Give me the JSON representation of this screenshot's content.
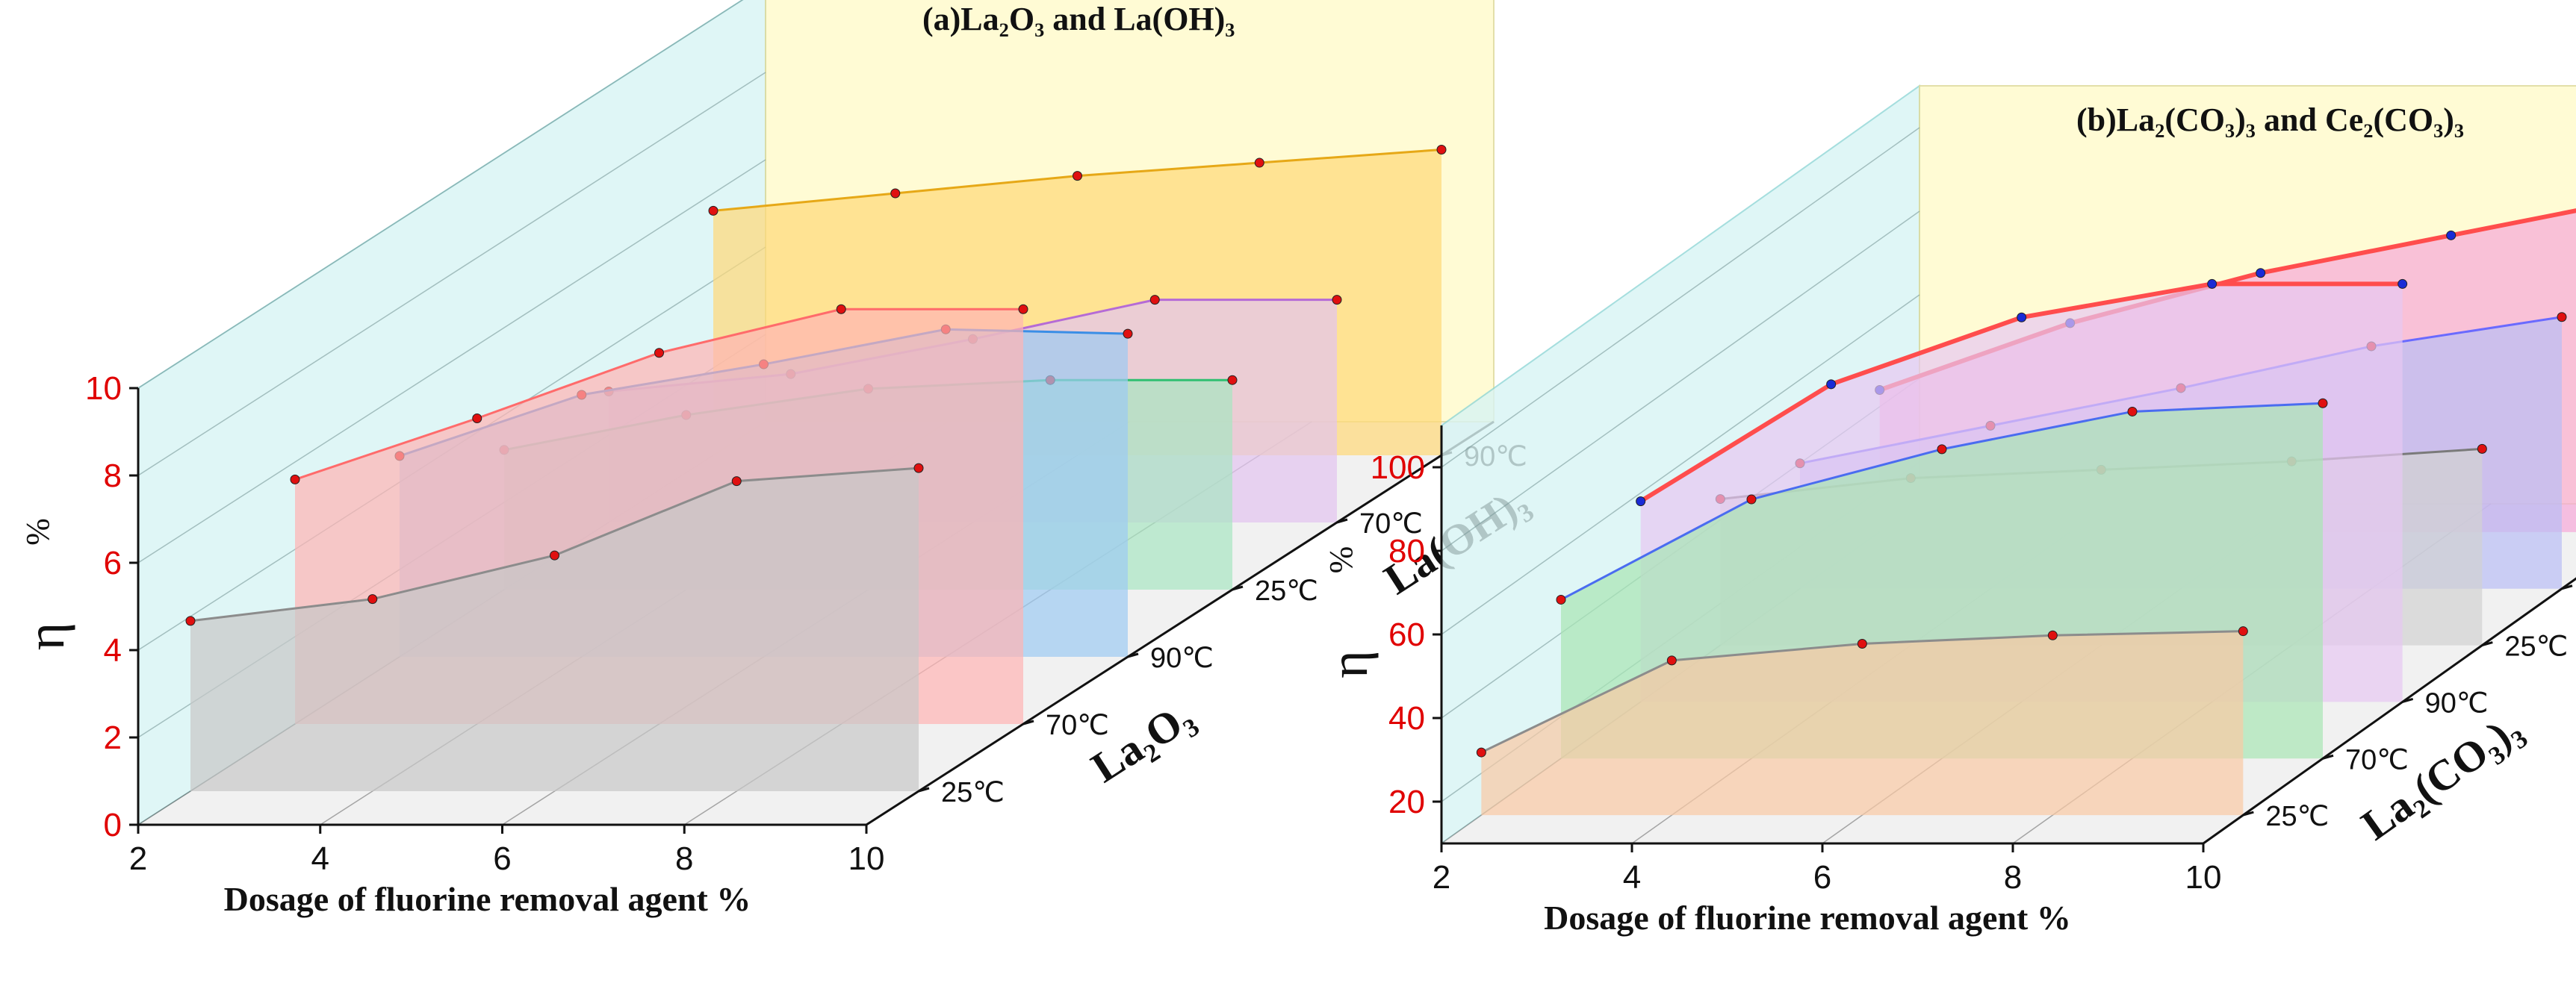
{
  "chart_data": [
    {
      "type": "line",
      "title": "(a)La₂O₃ and La(OH)₃",
      "xlabel": "Dosage of fluorine removal agent %",
      "ylabel": "η",
      "ylabel_unit": "%",
      "xticks": [
        "2",
        "4",
        "6",
        "8",
        "10"
      ],
      "yticks": [
        "0",
        "2",
        "4",
        "6",
        "8",
        "10"
      ],
      "xlim": [
        2,
        10
      ],
      "ylim": [
        0,
        10
      ],
      "depth_ticks": [
        "25℃",
        "70℃",
        "90℃",
        "25℃",
        "70℃",
        "90℃"
      ],
      "groups": [
        "La₂O₃",
        "La(OH)₃"
      ],
      "x": [
        2,
        4,
        6,
        8,
        10
      ],
      "series": [
        {
          "name": "La₂O₃ 25℃",
          "color": "#8c8c8c",
          "fill": "#c8c8c8",
          "values": [
            3.9,
            4.4,
            5.4,
            7.1,
            7.4
          ]
        },
        {
          "name": "La₂O₃ 70℃",
          "color": "#ff6b6b",
          "fill": "#ffb3b3",
          "values": [
            5.6,
            7.0,
            8.5,
            9.5,
            9.5
          ]
        },
        {
          "name": "La₂O₃ 90℃",
          "color": "#3a8ee6",
          "fill": "#9ccaf2",
          "values": [
            4.6,
            6.0,
            6.7,
            7.5,
            7.4
          ]
        },
        {
          "name": "La(OH)₃ 25℃",
          "color": "#2fbf71",
          "fill": "#a8e6c2",
          "values": [
            3.2,
            4.0,
            4.6,
            4.8,
            4.8
          ]
        },
        {
          "name": "La(OH)₃ 70℃",
          "color": "#b56bd6",
          "fill": "#e3c3f0",
          "values": [
            3.0,
            3.4,
            4.2,
            5.1,
            5.1
          ]
        },
        {
          "name": "La(OH)₃ 90℃",
          "color": "#e6a817",
          "fill": "#ffd978",
          "values": [
            5.6,
            6.0,
            6.4,
            6.7,
            7.0
          ]
        }
      ]
    },
    {
      "type": "line",
      "title": "(b)La₂(CO₃)₃ and Ce₂(CO₃)₃",
      "xlabel": "Dosage of fluorine removal agent %",
      "ylabel": "η",
      "ylabel_unit": "%",
      "xticks": [
        "2",
        "4",
        "6",
        "8",
        "10"
      ],
      "yticks": [
        "20",
        "40",
        "60",
        "80",
        "100"
      ],
      "xlim": [
        2,
        10
      ],
      "ylim": [
        10,
        110
      ],
      "depth_ticks": [
        "25℃",
        "70℃",
        "90℃",
        "25℃",
        "70℃",
        "90℃"
      ],
      "groups": [
        "La₂(CO₃)₃",
        "Ce₂(CO₃)₃"
      ],
      "x": [
        2,
        4,
        6,
        8,
        10
      ],
      "series": [
        {
          "name": "La₂(CO₃)₃ 25℃",
          "color": "#8c8c8c",
          "fill": "#f9c9a4",
          "values": [
            25,
            47,
            51,
            53,
            54
          ]
        },
        {
          "name": "La₂(CO₃)₃ 70℃",
          "color": "#4a6cf0",
          "fill": "#a8e6b4",
          "values": [
            48,
            72,
            84,
            93,
            95
          ]
        },
        {
          "name": "La₂(CO₃)₃ 90℃",
          "color": "#ff4d4d",
          "fill": "#e7c8f2",
          "values": [
            58,
            86,
            102,
            110,
            110
          ]
        },
        {
          "name": "Ce₂(CO₃)₃ 25℃",
          "color": "#7a7a7a",
          "fill": "#d2d2d2",
          "values": [
            45,
            50,
            52,
            54,
            57
          ]
        },
        {
          "name": "Ce₂(CO₃)₃ 70℃",
          "color": "#6a6aff",
          "fill": "#b9bdf5",
          "values": [
            40,
            49,
            58,
            68,
            75
          ]
        },
        {
          "name": "Ce₂(CO₃)₃ 90℃",
          "color": "#ff4d4d",
          "fill": "#f6a8d8",
          "values": [
            44,
            60,
            72,
            81,
            90
          ]
        }
      ]
    }
  ]
}
